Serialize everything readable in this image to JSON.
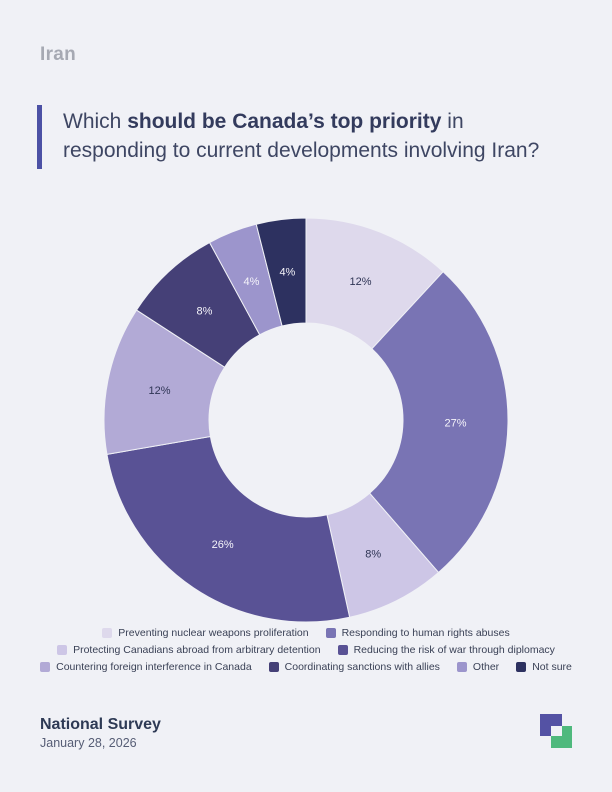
{
  "page": {
    "background_color": "#f0f1f6",
    "header_label": "Iran",
    "accent_color": "#4c51a5",
    "question": {
      "line1_pre": "Which ",
      "line1_bold": "should be Canada’s top priority",
      "line1_post": " in",
      "line2": "responding to current developments involving Iran?"
    },
    "footer": {
      "survey_name": "National Survey",
      "survey_date": "January 28, 2026"
    },
    "logo": {
      "purple": "#5452a4",
      "green": "#4fb97d"
    }
  },
  "chart_data": {
    "type": "pie",
    "subtype": "donut",
    "title": "Which should be Canada’s top priority in responding to current developments involving Iran?",
    "start_angle_deg": 0,
    "direction": "clockwise",
    "inner_radius_ratio": 0.48,
    "legend_position": "bottom",
    "legend_row_groups": [
      2,
      2,
      4
    ],
    "categories": [
      "Preventing nuclear weapons proliferation",
      "Responding to human rights abuses",
      "Protecting Canadians abroad from arbitrary detention",
      "Reducing the risk of war through diplomacy",
      "Countering foreign interference in Canada",
      "Coordinating sanctions with allies",
      "Other",
      "Not sure"
    ],
    "values": [
      12,
      27,
      8,
      26,
      12,
      8,
      4,
      4
    ],
    "labels": [
      "12%",
      "27%",
      "8%",
      "26%",
      "12%",
      "8%",
      "4%",
      "4%"
    ],
    "colors": [
      "#ded9ec",
      "#7974b4",
      "#cdc6e6",
      "#595295",
      "#b2aad6",
      "#454077",
      "#9c95cc",
      "#2d3160"
    ],
    "label_colors": [
      "#2f3555",
      "#f5f4fa",
      "#2f3555",
      "#f5f4fa",
      "#2f3555",
      "#f5f4fa",
      "#f5f4fa",
      "#f5f4fa"
    ]
  }
}
